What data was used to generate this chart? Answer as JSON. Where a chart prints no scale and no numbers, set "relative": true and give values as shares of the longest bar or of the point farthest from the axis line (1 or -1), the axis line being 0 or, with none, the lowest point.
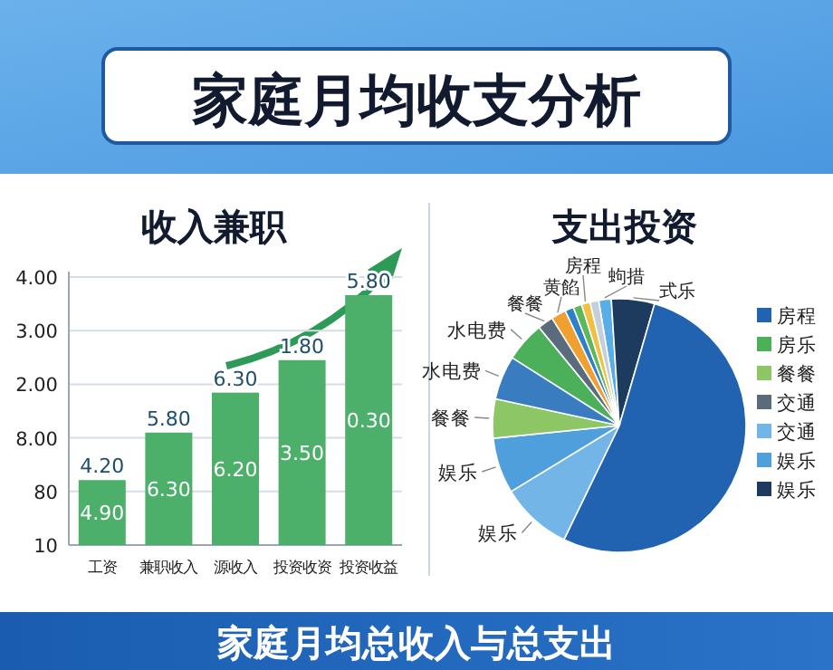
{
  "chart_data": [
    {
      "type": "other",
      "title": "家庭月均收支分析"
    },
    {
      "type": "bar",
      "title": "收入兼职",
      "relative": true,
      "grid": true,
      "categories": [
        "工资",
        "兼职收入",
        "源收入",
        "投资收资",
        "投资收益"
      ],
      "values": [
        0.26,
        0.45,
        0.61,
        0.74,
        1
      ],
      "color": "#4caf6a",
      "annotations": [
        "4.00",
        "3.00",
        "2.00",
        "8.00",
        "80",
        "10",
        "4.20",
        "5.80",
        "6.30",
        "1.80",
        "5.80",
        "4.90",
        "6.30",
        "6.20",
        "3.50",
        "0.30"
      ]
    },
    {
      "type": "pie",
      "title": "支出投资",
      "categories": [
        "蚼措",
        "式乐",
        null,
        "娱乐",
        "娱乐",
        "餐餐",
        "水电费",
        "水电费",
        "餐餐",
        "黄餡",
        null,
        null,
        "房程",
        null
      ],
      "values": [
        1.6,
        5.5,
        52.7,
        9.1,
        7.1,
        5.0,
        5.6,
        5.1,
        2.0,
        1.9,
        1.1,
        1.1,
        1.1,
        1.1
      ],
      "colors": [
        "#5aaee8",
        "#1d3b5e",
        "#2163b0",
        "#72b5e6",
        "#4f9fdc",
        "#8cc665",
        "#3a7cc0",
        "#4caf5a",
        "#5a6b7c",
        "#f0a030",
        "#2f80c8",
        "#5cb85c",
        "#f0c040",
        "#c3cfdc"
      ]
    },
    {
      "type": "other",
      "annotations": [
        "房程",
        "房乐",
        "餐餐",
        "交通",
        "交通",
        "娱乐",
        "娱乐"
      ],
      "colors": [
        "#2163b0",
        "#4caf5a",
        "#8cc665",
        "#5a6b7c",
        "#72b5e6",
        "#4f9fdc",
        "#1d3b5e"
      ]
    },
    {
      "type": "other",
      "title": "家庭月均总收入与总支出"
    }
  ]
}
